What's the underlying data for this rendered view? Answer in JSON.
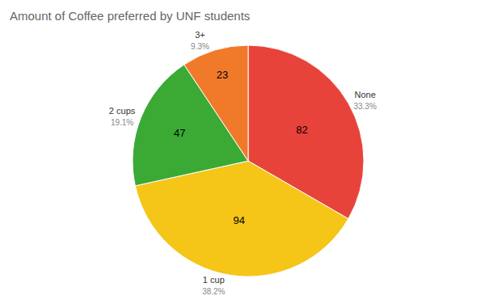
{
  "chart_data": {
    "type": "pie",
    "title": "Amount of Coffee preferred by UNF students",
    "categories": [
      "None",
      "1 cup",
      "2 cups",
      "3+"
    ],
    "values": [
      82,
      94,
      47,
      23
    ],
    "colors": [
      "#e8433a",
      "#f5c518",
      "#3aaa35",
      "#f07a2a"
    ],
    "data_labels": true,
    "percentages": {
      "values": [
        33.3,
        38.2,
        19.1,
        9.3
      ],
      "value_labels": [
        "33.3%",
        "38.2%",
        "19.1%",
        "9.3%"
      ]
    }
  }
}
